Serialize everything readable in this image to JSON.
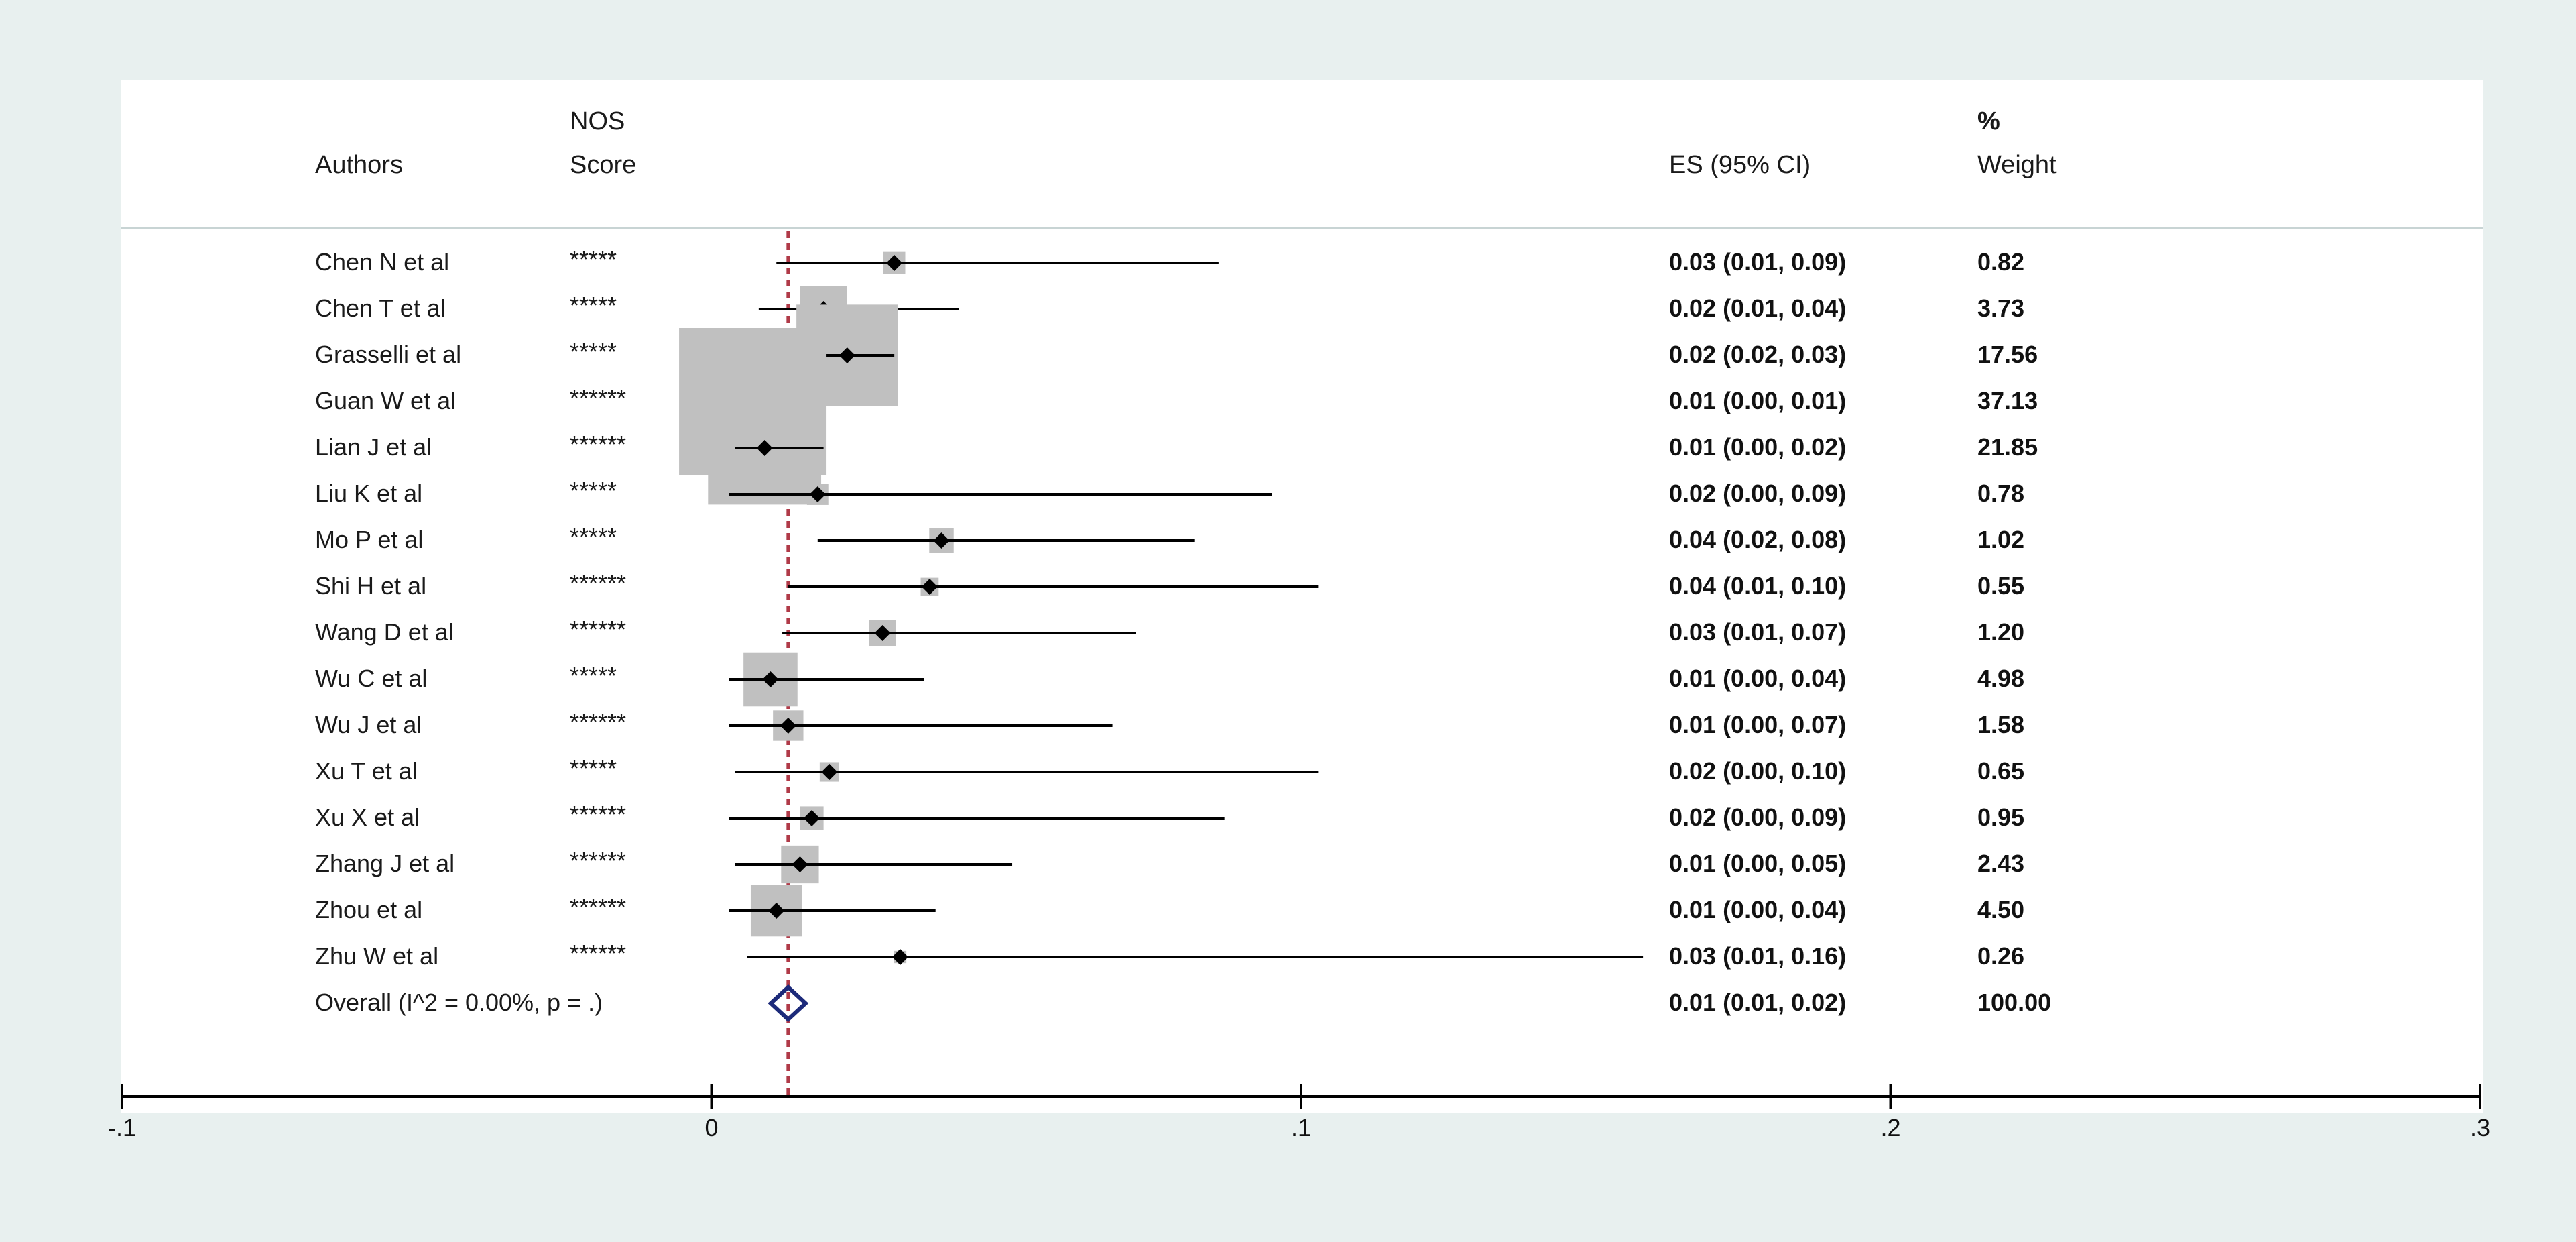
{
  "header": {
    "authors": "Authors",
    "nos_line1": "NOS",
    "nos_line2": "Score",
    "es": "ES (95% CI)",
    "weight_line1": "%",
    "weight_line2": "Weight"
  },
  "rows": [
    {
      "author": "Chen N et al",
      "score": "*****"
    },
    {
      "author": "Chen T et al",
      "score": "*****"
    },
    {
      "author": "Grasselli et al",
      "score": "*****"
    },
    {
      "author": "Guan W et al",
      "score": "******"
    },
    {
      "author": "Lian J et al",
      "score": "******"
    },
    {
      "author": "Liu K et al",
      "score": "*****"
    },
    {
      "author": "Mo P et al",
      "score": "*****"
    },
    {
      "author": "Shi H et al",
      "score": "******"
    },
    {
      "author": "Wang D et al",
      "score": "******"
    },
    {
      "author": "Wu C et al",
      "score": "*****"
    },
    {
      "author": "Wu J et al",
      "score": "******"
    },
    {
      "author": "Xu T et al",
      "score": "*****"
    },
    {
      "author": "Xu X et al",
      "score": "******"
    },
    {
      "author": "Zhang J et al",
      "score": "******"
    },
    {
      "author": "Zhou et al",
      "score": "******"
    },
    {
      "author": "Zhu W et al",
      "score": "******"
    }
  ],
  "overall_label": "Overall  (I^2 = 0.00%, p = .)",
  "chart_data": {
    "type": "forest",
    "x_ticks": [
      -0.1,
      0,
      0.1,
      0.2,
      0.3
    ],
    "x_tick_labels": [
      "-.1",
      "0",
      ".1",
      ".2",
      ".3"
    ],
    "xlim": [
      -0.1,
      0.3
    ],
    "overall_line": 0.013,
    "series": [
      {
        "name": "Chen N et al",
        "es": 0.031,
        "lo": 0.011,
        "hi": 0.086,
        "es_text": "0.03 (0.01, 0.09)",
        "weight": 0.82,
        "weight_text": "0.82"
      },
      {
        "name": "Chen T et al",
        "es": 0.019,
        "lo": 0.008,
        "hi": 0.042,
        "es_text": "0.02 (0.01, 0.04)",
        "weight": 3.73,
        "weight_text": "3.73"
      },
      {
        "name": "Grasselli et al",
        "es": 0.023,
        "lo": 0.017,
        "hi": 0.031,
        "es_text": "0.02 (0.02, 0.03)",
        "weight": 17.56,
        "weight_text": "17.56"
      },
      {
        "name": "Guan W et al",
        "es": 0.007,
        "lo": 0.004,
        "hi": 0.015,
        "es_text": "0.01 (0.00, 0.01)",
        "weight": 37.13,
        "weight_text": "37.13"
      },
      {
        "name": "Lian J et al",
        "es": 0.009,
        "lo": 0.004,
        "hi": 0.019,
        "es_text": "0.01 (0.00, 0.02)",
        "weight": 21.85,
        "weight_text": "21.85"
      },
      {
        "name": "Liu K et al",
        "es": 0.018,
        "lo": 0.003,
        "hi": 0.095,
        "es_text": "0.02 (0.00, 0.09)",
        "weight": 0.78,
        "weight_text": "0.78"
      },
      {
        "name": "Mo P et al",
        "es": 0.039,
        "lo": 0.018,
        "hi": 0.082,
        "es_text": "0.04 (0.02, 0.08)",
        "weight": 1.02,
        "weight_text": "1.02"
      },
      {
        "name": "Shi H et al",
        "es": 0.037,
        "lo": 0.013,
        "hi": 0.103,
        "es_text": "0.04 (0.01, 0.10)",
        "weight": 0.55,
        "weight_text": "0.55"
      },
      {
        "name": "Wang D et al",
        "es": 0.029,
        "lo": 0.012,
        "hi": 0.072,
        "es_text": "0.03 (0.01, 0.07)",
        "weight": 1.2,
        "weight_text": "1.20"
      },
      {
        "name": "Wu C et al",
        "es": 0.01,
        "lo": 0.003,
        "hi": 0.036,
        "es_text": "0.01 (0.00, 0.04)",
        "weight": 4.98,
        "weight_text": "4.98"
      },
      {
        "name": "Wu J et al",
        "es": 0.013,
        "lo": 0.003,
        "hi": 0.068,
        "es_text": "0.01 (0.00, 0.07)",
        "weight": 1.58,
        "weight_text": "1.58"
      },
      {
        "name": "Xu T et al",
        "es": 0.02,
        "lo": 0.004,
        "hi": 0.103,
        "es_text": "0.02 (0.00, 0.10)",
        "weight": 0.65,
        "weight_text": "0.65"
      },
      {
        "name": "Xu X et al",
        "es": 0.017,
        "lo": 0.003,
        "hi": 0.087,
        "es_text": "0.02 (0.00, 0.09)",
        "weight": 0.95,
        "weight_text": "0.95"
      },
      {
        "name": "Zhang J et al",
        "es": 0.015,
        "lo": 0.004,
        "hi": 0.051,
        "es_text": "0.01 (0.00, 0.05)",
        "weight": 2.43,
        "weight_text": "2.43"
      },
      {
        "name": "Zhou et al",
        "es": 0.011,
        "lo": 0.003,
        "hi": 0.038,
        "es_text": "0.01 (0.00, 0.04)",
        "weight": 4.5,
        "weight_text": "4.50"
      },
      {
        "name": "Zhu W et al",
        "es": 0.032,
        "lo": 0.006,
        "hi": 0.158,
        "es_text": "0.03 (0.01, 0.16)",
        "weight": 0.26,
        "weight_text": "0.26"
      }
    ],
    "overall": {
      "es": 0.013,
      "lo": 0.01,
      "hi": 0.016,
      "es_text": "0.01 (0.01, 0.02)",
      "weight_text": "100.00"
    },
    "colors": {
      "box": "#c0c0c0",
      "ref_line": "#b03a48",
      "overall_diamond": "#1c2a7a",
      "point": "#000000"
    }
  }
}
